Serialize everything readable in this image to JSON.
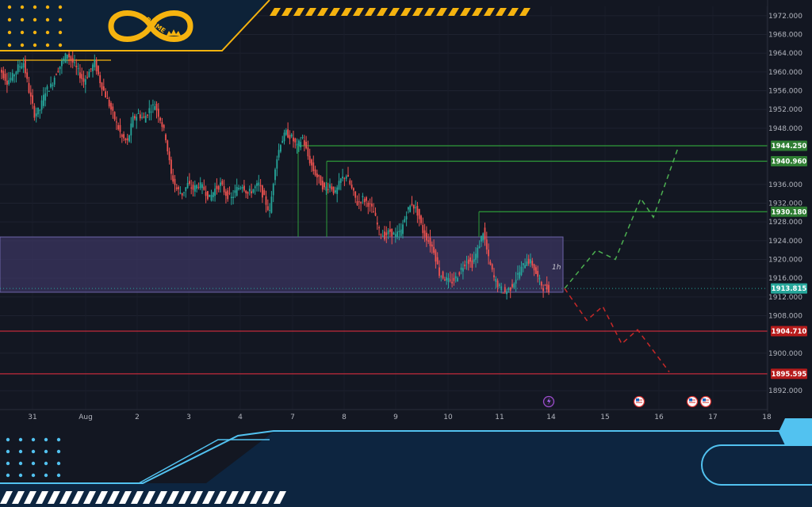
{
  "brand": {
    "logo_text": "PRIME",
    "colors": {
      "gold": "#f5b30f",
      "cyan": "#52c2f0",
      "navy": "#0d2238"
    }
  },
  "timeframe_label": "1h",
  "chart_data": {
    "type": "candlestick",
    "y_ticks": [
      "1972.000",
      "1968.000",
      "1964.000",
      "1960.000",
      "1956.000",
      "1952.000",
      "1948.000",
      "1936.000",
      "1932.000",
      "1928.000",
      "1924.000",
      "1920.000",
      "1916.000",
      "1912.000",
      "1908.000",
      "1900.000",
      "1892.000"
    ],
    "ylim": [
      1890,
      1974
    ],
    "x_ticks": [
      "31",
      "Aug",
      "2",
      "3",
      "4",
      "7",
      "8",
      "9",
      "10",
      "11",
      "14",
      "15",
      "16",
      "17",
      "18"
    ],
    "price_tags": [
      {
        "label": "1944.250",
        "value": 1944.25,
        "kind": "target-up"
      },
      {
        "label": "1940.960",
        "value": 1940.96,
        "kind": "target-up"
      },
      {
        "label": "1930.180",
        "value": 1930.18,
        "kind": "target-up"
      },
      {
        "label": "1913.815",
        "value": 1913.815,
        "kind": "current"
      },
      {
        "label": "1904.710",
        "value": 1904.71,
        "kind": "target-down"
      },
      {
        "label": "1895.595",
        "value": 1895.595,
        "kind": "target-down"
      }
    ],
    "zone": {
      "top": 1924.8,
      "bottom": 1913.0
    },
    "path_close": [
      1960,
      1958,
      1959,
      1961,
      1962,
      1956,
      1951,
      1952,
      1956,
      1957,
      1960,
      1962,
      1964,
      1962,
      1960,
      1958,
      1960,
      1962,
      1958,
      1955,
      1952,
      1949,
      1946,
      1945,
      1950,
      1951,
      1950,
      1952,
      1953,
      1950,
      1946,
      1938,
      1935,
      1934,
      1936,
      1935,
      1936,
      1935,
      1933,
      1935,
      1936,
      1934,
      1933,
      1935,
      1936,
      1934,
      1935,
      1936,
      1933,
      1930,
      1940,
      1945,
      1947,
      1946,
      1944,
      1946,
      1942,
      1939,
      1937,
      1935,
      1936,
      1934,
      1937,
      1938,
      1935,
      1932,
      1933,
      1932,
      1930,
      1926,
      1925,
      1926,
      1925,
      1926,
      1930,
      1932,
      1930,
      1926,
      1924,
      1922,
      1917,
      1916,
      1915,
      1916,
      1918,
      1920,
      1919,
      1922,
      1926,
      1920,
      1916,
      1914,
      1913,
      1914,
      1916,
      1918,
      1920,
      1919,
      1916,
      1914,
      1913.8
    ],
    "projection_up": [
      [
        1913.8,
        0
      ],
      [
        1922,
        1
      ],
      [
        1920,
        1.6
      ],
      [
        1933,
        2.4
      ],
      [
        1929,
        2.8
      ],
      [
        1944.25,
        3.6
      ]
    ],
    "projection_down": [
      [
        1913.8,
        0
      ],
      [
        1907,
        0.7
      ],
      [
        1910,
        1.2
      ],
      [
        1902,
        1.8
      ],
      [
        1905,
        2.3
      ],
      [
        1896,
        3.3
      ]
    ],
    "event_icons": [
      "lightning-icon",
      "us-flag-icon",
      "us-flag-icon",
      "us-flag-icon"
    ]
  }
}
